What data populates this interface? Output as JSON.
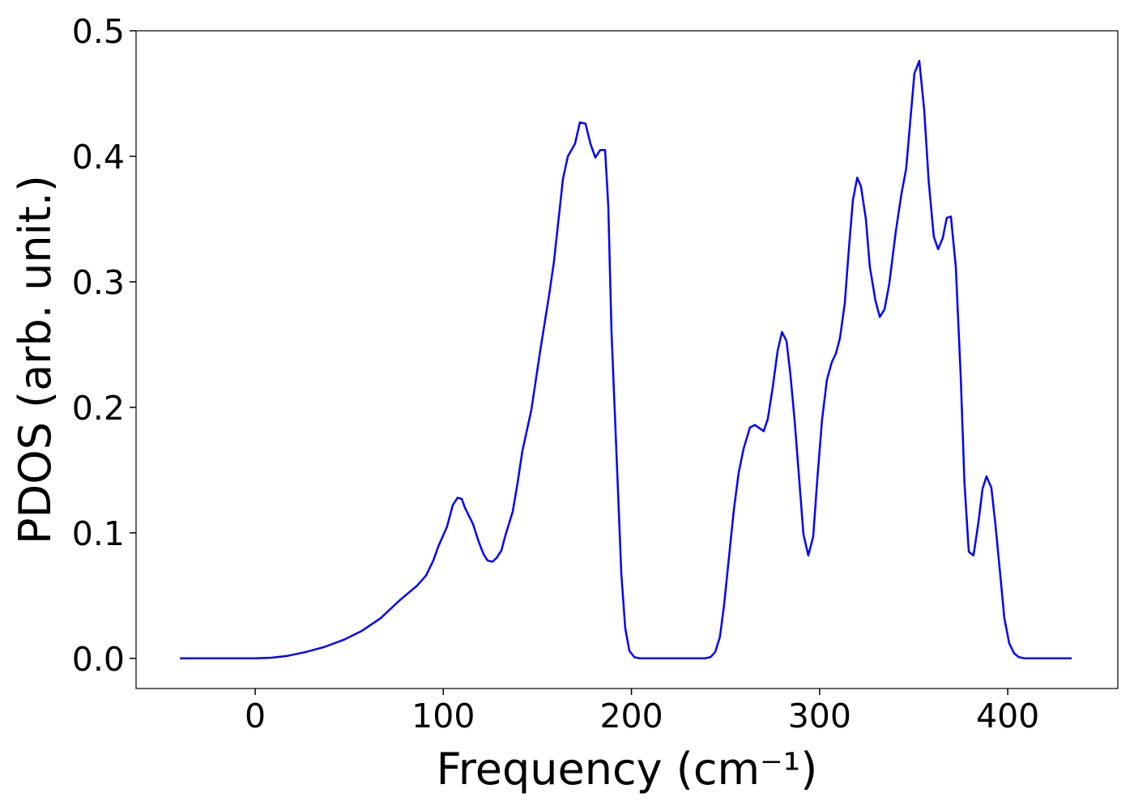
{
  "chart_data": {
    "type": "line",
    "xlabel": "Frequency (cm⁻¹)",
    "ylabel": "PDOS (arb. unit.)",
    "xlim": [
      -63.3,
      458.5
    ],
    "ylim": [
      -0.024,
      0.5
    ],
    "xticks": [
      0,
      100,
      200,
      300,
      400
    ],
    "yticks": [
      {
        "value": 0,
        "label": "0.0"
      },
      0.1,
      0.2,
      0.3,
      0.4,
      0.5
    ],
    "grid": false,
    "series": [
      {
        "name": "PDOS",
        "color": "#0000ff",
        "x": [
          -40,
          0,
          8.6,
          17.2,
          26.7,
          36.6,
          47.4,
          56.8,
          66.7,
          76.6,
          86.1,
          90.8,
          94.7,
          97.3,
          102,
          105,
          107.6,
          109.8,
          111.5,
          115.8,
          118.8,
          121.4,
          123.5,
          126.1,
          128.3,
          130.9,
          133,
          136.9,
          139.5,
          142,
          146.8,
          151.5,
          156.3,
          158.8,
          163.6,
          166.2,
          170,
          172.6,
          175.6,
          178.2,
          180.8,
          183.4,
          186,
          187.7,
          189.4,
          192.4,
          194.6,
          196.7,
          198.9,
          201.5,
          204.5,
          239,
          242,
          244.5,
          247,
          249.2,
          251.8,
          254.4,
          257,
          259.6,
          263,
          265.6,
          270.3,
          272.5,
          275,
          277.7,
          280,
          282.4,
          284.5,
          286.7,
          289.3,
          291.4,
          294,
          296.6,
          298.8,
          301.3,
          303.9,
          306.5,
          308.7,
          310.8,
          313.4,
          315.5,
          317.7,
          320,
          322,
          324.6,
          326.7,
          329.7,
          332,
          334.5,
          337,
          340.5,
          343.5,
          346,
          350.4,
          353,
          355.6,
          358,
          360.7,
          363,
          365.5,
          367.6,
          369.8,
          372.4,
          375,
          377,
          379.3,
          381.8,
          384.4,
          386.6,
          388.7,
          391.3,
          393.5,
          396,
          398.2,
          400.8,
          403.4,
          405.9,
          409,
          434
        ],
        "values": [
          0,
          0,
          0.0005,
          0.002,
          0.005,
          0.009,
          0.015,
          0.022,
          0.032,
          0.046,
          0.058,
          0.066,
          0.078,
          0.089,
          0.105,
          0.122,
          0.128,
          0.127,
          0.12,
          0.107,
          0.093,
          0.083,
          0.078,
          0.077,
          0.08,
          0.086,
          0.098,
          0.117,
          0.14,
          0.165,
          0.198,
          0.245,
          0.29,
          0.316,
          0.382,
          0.4,
          0.41,
          0.427,
          0.426,
          0.41,
          0.399,
          0.405,
          0.405,
          0.36,
          0.26,
          0.15,
          0.068,
          0.024,
          0.006,
          0.001,
          0,
          0,
          0.001,
          0.005,
          0.017,
          0.042,
          0.08,
          0.118,
          0.148,
          0.167,
          0.184,
          0.186,
          0.181,
          0.191,
          0.215,
          0.245,
          0.26,
          0.253,
          0.226,
          0.19,
          0.14,
          0.099,
          0.082,
          0.097,
          0.143,
          0.19,
          0.222,
          0.236,
          0.243,
          0.255,
          0.283,
          0.325,
          0.365,
          0.383,
          0.376,
          0.35,
          0.312,
          0.285,
          0.272,
          0.278,
          0.298,
          0.34,
          0.37,
          0.39,
          0.466,
          0.476,
          0.437,
          0.38,
          0.336,
          0.326,
          0.335,
          0.351,
          0.352,
          0.312,
          0.225,
          0.14,
          0.085,
          0.082,
          0.108,
          0.135,
          0.145,
          0.136,
          0.106,
          0.067,
          0.032,
          0.012,
          0.004,
          0.001,
          0,
          0
        ]
      }
    ]
  }
}
